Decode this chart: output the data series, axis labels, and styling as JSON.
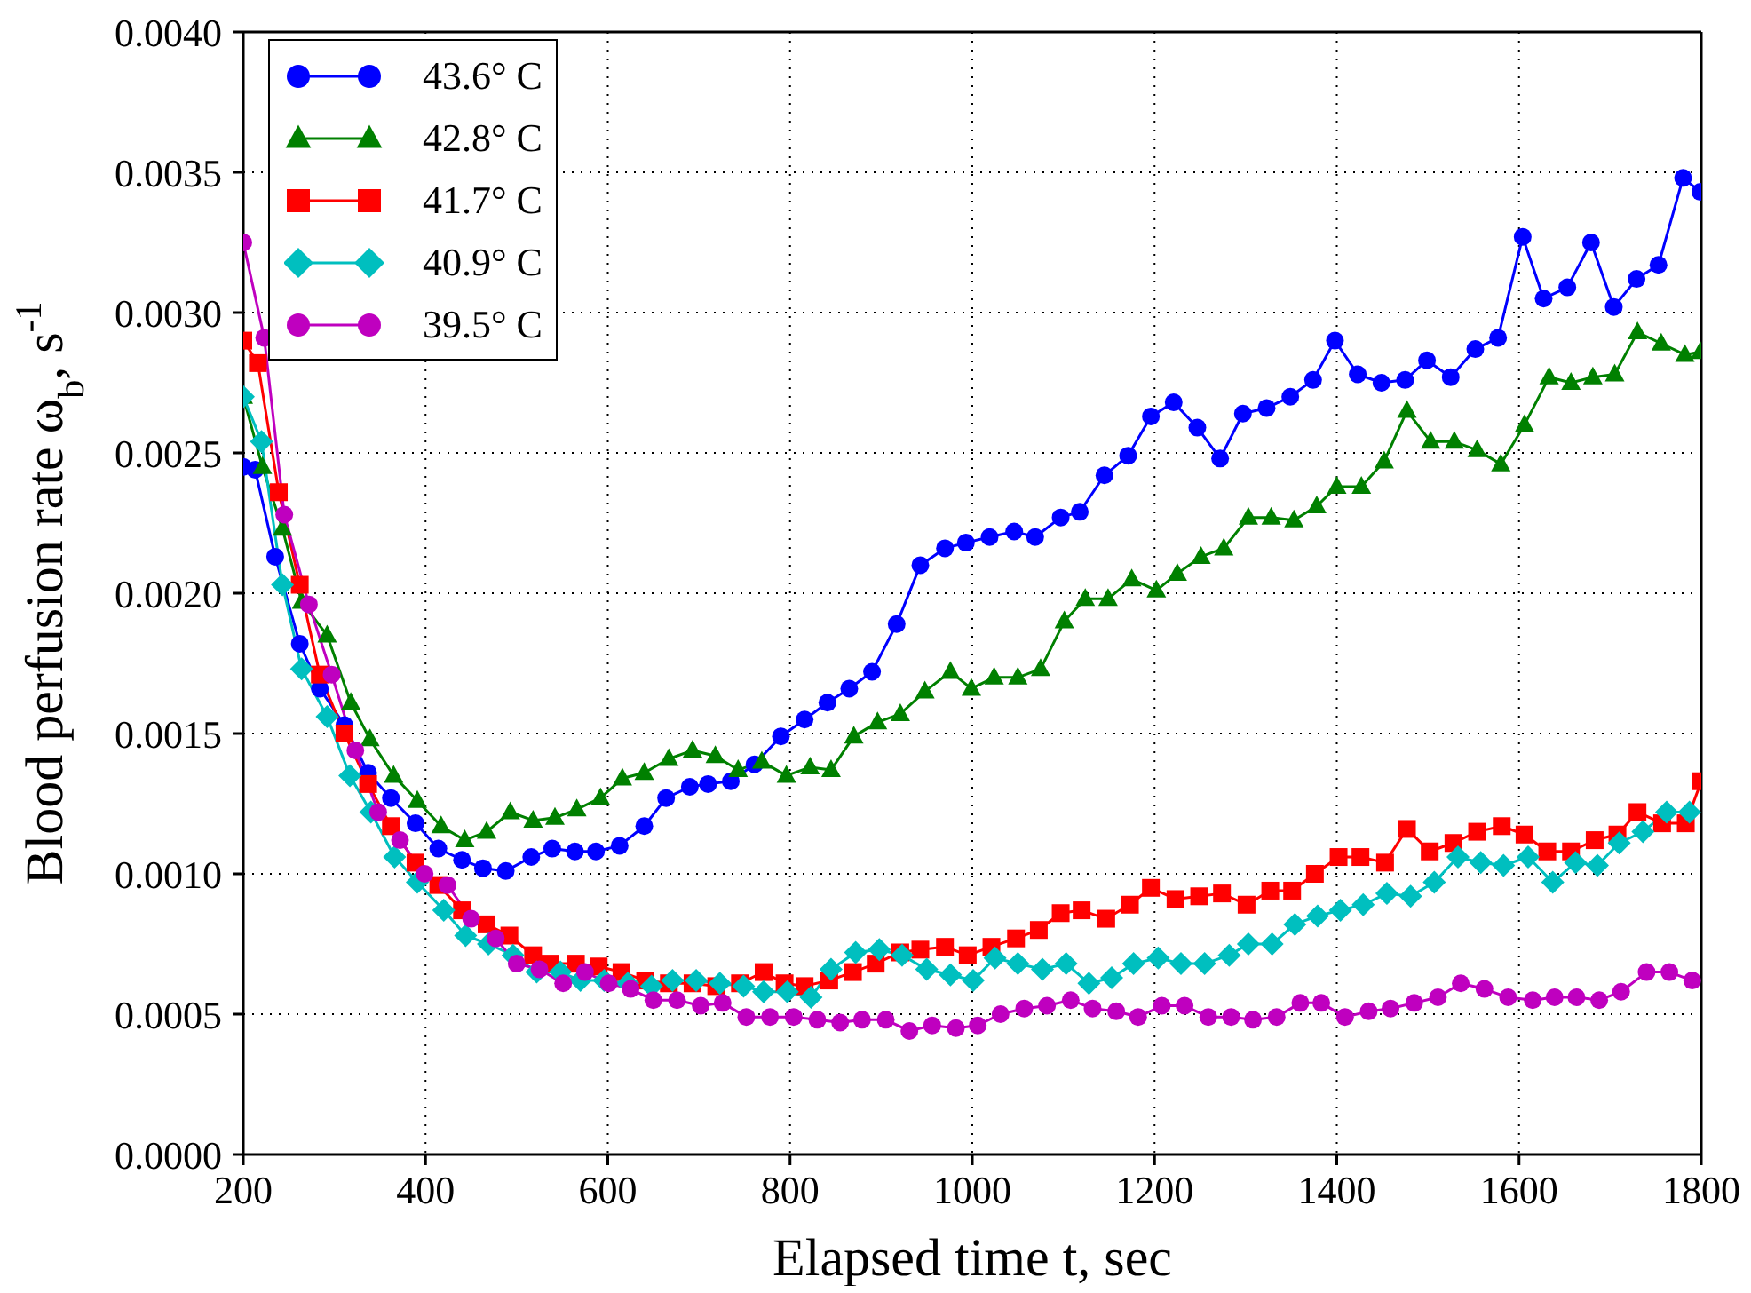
{
  "chart_data": {
    "type": "line",
    "xlabel": "Elapsed time t, sec",
    "ylabel": "Blood perfusion rate ω$_{b}$, s$^{-1}$",
    "xlim": [
      200,
      1800
    ],
    "xticks": [
      200,
      400,
      600,
      800,
      1000,
      1200,
      1400,
      1600,
      1800
    ],
    "ylim": [
      0,
      0.004
    ],
    "yticks": [
      {
        "value": 0,
        "label": "0.0000"
      },
      {
        "value": 0.0005,
        "label": "0.0005"
      },
      {
        "value": 0.001,
        "label": "0.0010"
      },
      {
        "value": 0.0015,
        "label": "0.0015"
      },
      {
        "value": 0.002,
        "label": "0.0020"
      },
      {
        "value": 0.0025,
        "label": "0.0025"
      },
      {
        "value": 0.003,
        "label": "0.0030"
      },
      {
        "value": 0.0035,
        "label": "0.0035"
      },
      {
        "value": 0.004,
        "label": "0.0040"
      }
    ],
    "grid": true,
    "legend": "top left",
    "line_style": "solid",
    "series": [
      {
        "name": "43.6° C",
        "color": "#0000ff",
        "marker": "circle",
        "x": [
          200,
          213,
          235,
          262,
          284,
          311,
          337,
          362,
          389,
          414,
          440,
          463,
          488,
          516,
          539,
          564,
          587,
          613,
          640,
          664,
          690,
          710,
          735,
          761,
          790,
          816,
          841,
          865,
          890,
          917,
          943,
          970,
          993,
          1019,
          1046,
          1069,
          1097,
          1118,
          1145,
          1171,
          1196,
          1221,
          1247,
          1272,
          1297,
          1323,
          1349,
          1374,
          1398,
          1423,
          1449,
          1475,
          1499,
          1525,
          1552,
          1577,
          1604,
          1627,
          1653,
          1679,
          1704,
          1729,
          1753,
          1780,
          1799
        ],
        "values": [
          0.00245,
          0.00244,
          0.00213,
          0.00182,
          0.00166,
          0.00153,
          0.00136,
          0.00127,
          0.00118,
          0.00109,
          0.00105,
          0.00102,
          0.00101,
          0.00106,
          0.00109,
          0.00108,
          0.00108,
          0.0011,
          0.00117,
          0.00127,
          0.00131,
          0.00132,
          0.00133,
          0.00139,
          0.00149,
          0.00155,
          0.00161,
          0.00166,
          0.00172,
          0.00189,
          0.0021,
          0.00216,
          0.00218,
          0.0022,
          0.00222,
          0.0022,
          0.00227,
          0.00229,
          0.00242,
          0.00249,
          0.00263,
          0.00268,
          0.00259,
          0.00248,
          0.00264,
          0.00266,
          0.0027,
          0.00276,
          0.0029,
          0.00278,
          0.00275,
          0.00276,
          0.00283,
          0.00277,
          0.00287,
          0.00291,
          0.00327,
          0.00305,
          0.00309,
          0.00325,
          0.00302,
          0.00312,
          0.00317,
          0.00348,
          0.00343
        ]
      },
      {
        "name": "42.8° C",
        "color": "#008000",
        "marker": "triangle",
        "x": [
          200,
          221,
          243,
          264,
          292,
          318,
          339,
          365,
          391,
          417,
          443,
          467,
          493,
          518,
          542,
          566,
          592,
          616,
          640,
          667,
          693,
          718,
          743,
          769,
          796,
          822,
          845,
          870,
          896,
          921,
          948,
          976,
          999,
          1024,
          1050,
          1075,
          1101,
          1124,
          1149,
          1175,
          1202,
          1225,
          1251,
          1276,
          1303,
          1328,
          1353,
          1378,
          1400,
          1427,
          1452,
          1477,
          1503,
          1529,
          1554,
          1580,
          1606,
          1633,
          1657,
          1681,
          1705,
          1730,
          1756,
          1782,
          1799
        ],
        "values": [
          0.0027,
          0.00245,
          0.00223,
          0.00197,
          0.00185,
          0.00161,
          0.00148,
          0.00135,
          0.00126,
          0.00117,
          0.00112,
          0.00115,
          0.00122,
          0.00119,
          0.0012,
          0.00123,
          0.00127,
          0.00134,
          0.00136,
          0.00141,
          0.00144,
          0.00142,
          0.00137,
          0.0014,
          0.00135,
          0.00138,
          0.00137,
          0.00149,
          0.00154,
          0.00157,
          0.00165,
          0.00172,
          0.00166,
          0.0017,
          0.0017,
          0.00173,
          0.0019,
          0.00198,
          0.00198,
          0.00205,
          0.00201,
          0.00207,
          0.00213,
          0.00216,
          0.00227,
          0.00227,
          0.00226,
          0.00231,
          0.00238,
          0.00238,
          0.00247,
          0.00265,
          0.00254,
          0.00254,
          0.00251,
          0.00246,
          0.0026,
          0.00277,
          0.00275,
          0.00277,
          0.00278,
          0.00293,
          0.00289,
          0.00285,
          0.00286
        ]
      },
      {
        "name": "41.7° C",
        "color": "#ff0000",
        "marker": "square",
        "x": [
          200,
          216,
          239,
          262,
          284,
          311,
          337,
          362,
          389,
          414,
          440,
          467,
          492,
          518,
          537,
          565,
          590,
          615,
          641,
          667,
          693,
          719,
          745,
          771,
          794,
          816,
          843,
          869,
          894,
          921,
          943,
          970,
          995,
          1021,
          1048,
          1073,
          1097,
          1120,
          1147,
          1173,
          1196,
          1223,
          1249,
          1274,
          1301,
          1327,
          1351,
          1376,
          1402,
          1426,
          1453,
          1477,
          1502,
          1528,
          1554,
          1581,
          1606,
          1631,
          1657,
          1683,
          1708,
          1730,
          1757,
          1783,
          1800
        ],
        "values": [
          0.0029,
          0.00282,
          0.00236,
          0.00203,
          0.00171,
          0.0015,
          0.00132,
          0.00117,
          0.00104,
          0.00096,
          0.00087,
          0.00082,
          0.00078,
          0.00071,
          0.00068,
          0.00068,
          0.00067,
          0.00065,
          0.00062,
          0.00061,
          0.00061,
          0.0006,
          0.00061,
          0.00065,
          0.00061,
          0.0006,
          0.00062,
          0.00065,
          0.00068,
          0.00072,
          0.00073,
          0.00074,
          0.00071,
          0.00074,
          0.00077,
          0.0008,
          0.00086,
          0.00087,
          0.00084,
          0.00089,
          0.00095,
          0.00091,
          0.00092,
          0.00093,
          0.00089,
          0.00094,
          0.00094,
          0.001,
          0.00106,
          0.00106,
          0.00104,
          0.00116,
          0.00108,
          0.00111,
          0.00115,
          0.00117,
          0.00114,
          0.00108,
          0.00108,
          0.00112,
          0.00114,
          0.00122,
          0.00118,
          0.00118,
          0.00133
        ]
      },
      {
        "name": "40.9° C",
        "color": "#00bfbf",
        "marker": "diamond",
        "x": [
          200,
          220,
          243,
          264,
          292,
          317,
          340,
          366,
          391,
          420,
          444,
          469,
          496,
          522,
          548,
          570,
          596,
          622,
          648,
          671,
          697,
          723,
          749,
          771,
          797,
          823,
          845,
          872,
          898,
          923,
          950,
          976,
          1001,
          1025,
          1050,
          1077,
          1103,
          1128,
          1153,
          1177,
          1204,
          1229,
          1255,
          1282,
          1303,
          1329,
          1354,
          1379,
          1404,
          1429,
          1455,
          1481,
          1507,
          1533,
          1558,
          1583,
          1610,
          1637,
          1662,
          1686,
          1710,
          1736,
          1762,
          1787
        ],
        "values": [
          0.0027,
          0.00254,
          0.00203,
          0.00173,
          0.00156,
          0.00135,
          0.00122,
          0.00106,
          0.00097,
          0.00087,
          0.00078,
          0.00075,
          0.00071,
          0.00065,
          0.00065,
          0.00062,
          0.00062,
          0.00061,
          0.0006,
          0.00062,
          0.00062,
          0.00061,
          0.0006,
          0.00058,
          0.00058,
          0.00056,
          0.00066,
          0.00072,
          0.00073,
          0.00071,
          0.00066,
          0.00064,
          0.00062,
          0.0007,
          0.00068,
          0.00066,
          0.00068,
          0.00061,
          0.00063,
          0.00068,
          0.0007,
          0.00068,
          0.00068,
          0.00071,
          0.00075,
          0.00075,
          0.00082,
          0.00085,
          0.00087,
          0.00089,
          0.00093,
          0.00092,
          0.00097,
          0.00106,
          0.00104,
          0.00103,
          0.00106,
          0.00097,
          0.00104,
          0.00103,
          0.00111,
          0.00115,
          0.00122,
          0.00122
        ]
      },
      {
        "name": "39.5° C",
        "color": "#bf00bf",
        "marker": "circle",
        "x": [
          200,
          223,
          245,
          272,
          297,
          323,
          348,
          372,
          399,
          424,
          450,
          477,
          500,
          525,
          551,
          575,
          601,
          625,
          650,
          676,
          702,
          726,
          752,
          778,
          804,
          830,
          855,
          879,
          905,
          931,
          956,
          982,
          1006,
          1031,
          1057,
          1082,
          1108,
          1132,
          1158,
          1182,
          1208,
          1233,
          1259,
          1284,
          1308,
          1334,
          1360,
          1383,
          1409,
          1435,
          1459,
          1485,
          1511,
          1536,
          1562,
          1588,
          1615,
          1639,
          1663,
          1688,
          1712,
          1740,
          1765,
          1790
        ],
        "values": [
          0.00325,
          0.00291,
          0.00228,
          0.00196,
          0.00171,
          0.00144,
          0.00122,
          0.00112,
          0.001,
          0.00096,
          0.00084,
          0.00077,
          0.00068,
          0.00066,
          0.00061,
          0.00065,
          0.00061,
          0.00059,
          0.00055,
          0.00055,
          0.00053,
          0.00054,
          0.00049,
          0.00049,
          0.00049,
          0.00048,
          0.00047,
          0.00048,
          0.00048,
          0.00044,
          0.00046,
          0.00045,
          0.00046,
          0.0005,
          0.00052,
          0.00053,
          0.00055,
          0.00052,
          0.00051,
          0.00049,
          0.00053,
          0.00053,
          0.00049,
          0.00049,
          0.00048,
          0.00049,
          0.00054,
          0.00054,
          0.00049,
          0.00051,
          0.00052,
          0.00054,
          0.00056,
          0.00061,
          0.00059,
          0.00056,
          0.00055,
          0.00056,
          0.00056,
          0.00055,
          0.00058,
          0.00065,
          0.00065,
          0.00062
        ]
      }
    ]
  }
}
